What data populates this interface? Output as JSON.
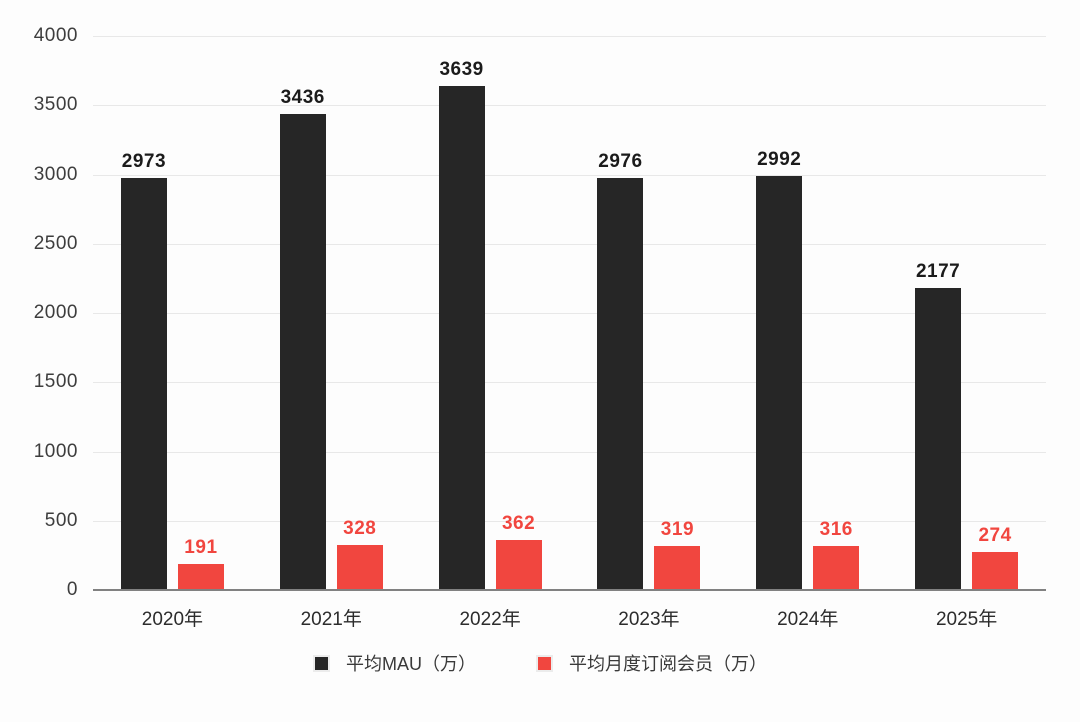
{
  "chart_data": {
    "type": "bar",
    "categories": [
      "2020年",
      "2021年",
      "2022年",
      "2023年",
      "2024年",
      "2025年"
    ],
    "series": [
      {
        "name": "平均MAU（万）",
        "color": "#262626",
        "label_color": "#1b1b1b",
        "values": [
          2973,
          3436,
          3639,
          2976,
          2992,
          2177
        ]
      },
      {
        "name": "平均月度订阅会员（万）",
        "color": "#F1463F",
        "label_color": "#F1463F",
        "values": [
          191,
          328,
          362,
          319,
          316,
          274
        ]
      }
    ],
    "title": "",
    "xlabel": "",
    "ylabel": "",
    "ylim": [
      0,
      4000
    ],
    "yticks": [
      0,
      500,
      1000,
      1500,
      2000,
      2500,
      3000,
      3500,
      4000
    ],
    "grid": true,
    "legend_position": "bottom",
    "value_labels_shown": true
  },
  "colors": {
    "background": "#fdfdfd",
    "gridline": "#e8e8e8",
    "axis_line": "#818181",
    "tick_text": "#3d3d3d",
    "category_text": "#2c2c2c",
    "legend_text": "#3a3a3a"
  }
}
